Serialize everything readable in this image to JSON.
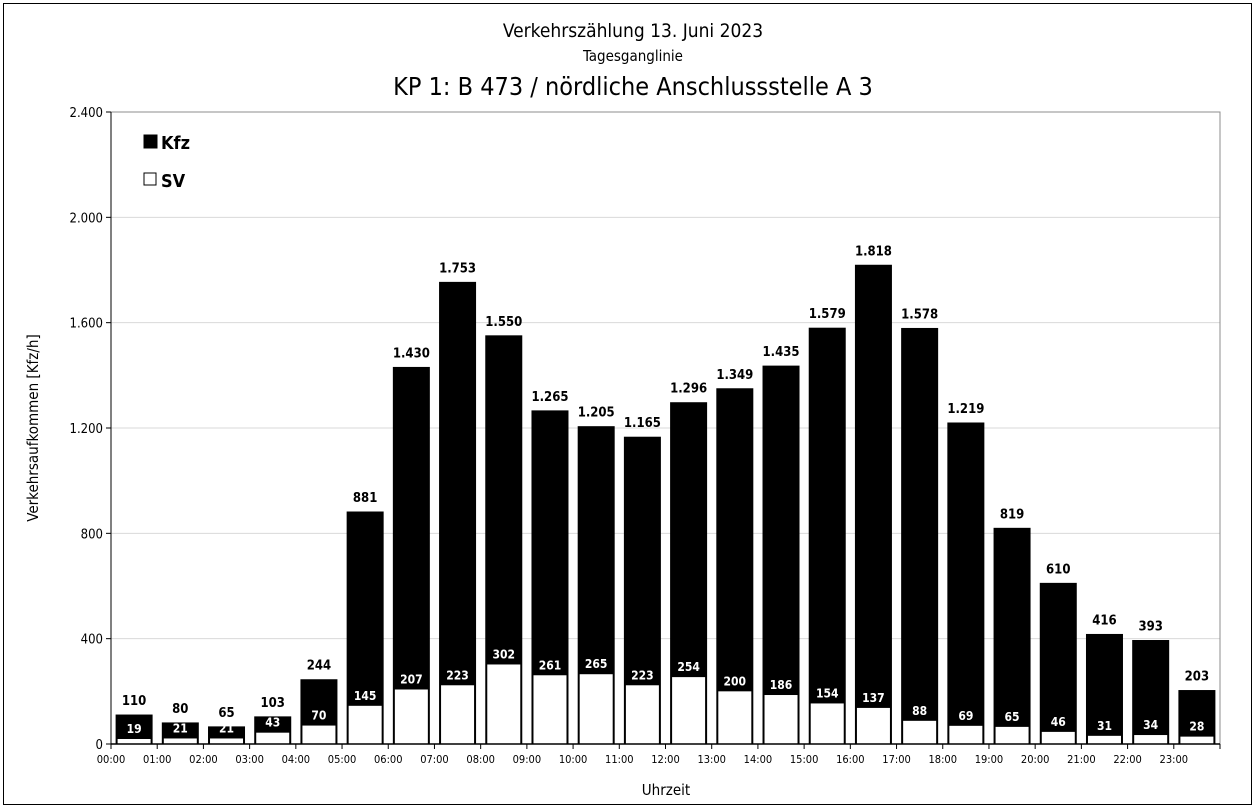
{
  "chart_data": {
    "type": "bar",
    "title": "Verkehrszählung 13. Juni 2023",
    "subtitle": "Tagesganglinie",
    "heading": "KP 1: B 473 / nördliche Anschlussstelle A 3",
    "xlabel": "Uhrzeit",
    "ylabel": "Verkehrsaufkommen [Kfz/h]",
    "ylim": [
      0,
      2400
    ],
    "yticks": [
      {
        "value": 0,
        "label": "0"
      },
      {
        "value": 400,
        "label": "400"
      },
      {
        "value": 800,
        "label": "800"
      },
      {
        "value": 1200,
        "label": "1.200"
      },
      {
        "value": 1600,
        "label": "1.600"
      },
      {
        "value": 2000,
        "label": "2.000"
      },
      {
        "value": 2400,
        "label": "2.400"
      }
    ],
    "xtick_labels": [
      "00:00",
      "01:00",
      "02:00",
      "03:00",
      "04:00",
      "05:00",
      "06:00",
      "07:00",
      "08:00",
      "09:00",
      "10:00",
      "11:00",
      "12:00",
      "13:00",
      "14:00",
      "15:00",
      "16:00",
      "17:00",
      "18:00",
      "19:00",
      "20:00",
      "21:00",
      "22:00",
      "23:00"
    ],
    "grid": true,
    "legend_position": "top-left",
    "series": [
      {
        "name": "Kfz",
        "color": "#000000",
        "values": [
          110,
          80,
          65,
          103,
          244,
          881,
          1430,
          1753,
          1550,
          1265,
          1205,
          1165,
          1296,
          1349,
          1435,
          1579,
          1818,
          1578,
          1219,
          819,
          610,
          416,
          393,
          203
        ],
        "labels": [
          "110",
          "80",
          "65",
          "103",
          "244",
          "881",
          "1.430",
          "1.753",
          "1.550",
          "1.265",
          "1.205",
          "1.165",
          "1.296",
          "1.349",
          "1.435",
          "1.579",
          "1.818",
          "1.578",
          "1.219",
          "819",
          "610",
          "416",
          "393",
          "203"
        ]
      },
      {
        "name": "SV",
        "color": "#ffffff",
        "values": [
          19,
          21,
          21,
          43,
          70,
          145,
          207,
          223,
          302,
          261,
          265,
          223,
          254,
          200,
          186,
          154,
          137,
          88,
          69,
          65,
          46,
          31,
          34,
          28
        ],
        "labels": [
          "19",
          "21",
          "21",
          "43",
          "70",
          "145",
          "207",
          "223",
          "302",
          "261",
          "265",
          "223",
          "254",
          "200",
          "186",
          "154",
          "137",
          "88",
          "69",
          "65",
          "46",
          "31",
          "34",
          "28"
        ]
      }
    ]
  }
}
